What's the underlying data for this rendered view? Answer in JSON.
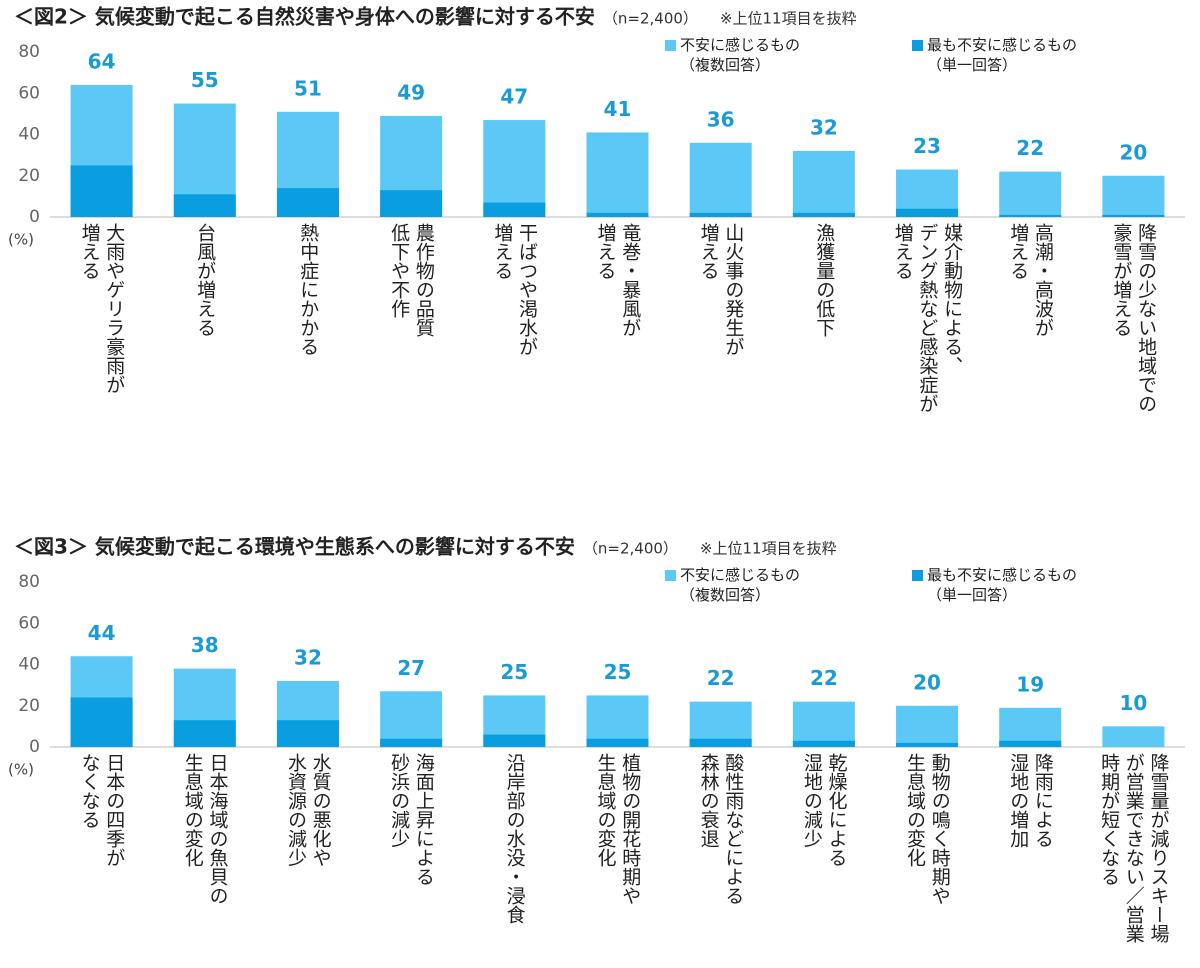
{
  "chart_data": [
    {
      "type": "bar",
      "title": "＜図2＞ 気候変動で起こる自然災害や身体への影響に対する不安",
      "subtitle": "（n=2,400）",
      "note": "※上位11項目を抜粋",
      "unit": "(%)",
      "categories": [
        "大雨やゲリラ豪雨が\n増える",
        "台風が増える",
        "熱中症にかかる",
        "農作物の品質\n低下や不作",
        "干ばつや渇水が\n増える",
        "竜巻・暴風が\n増える",
        "山火事の発生が\n増える",
        "漁獲量の低下",
        "媒介動物による、\nデング熱など感染症が\n増える",
        "高潮・高波が\n増える",
        "降雪の少ない地域での\n豪雪が増える"
      ],
      "series": [
        {
          "name": "不安に感じるもの\n（複数回答）",
          "color": "#5bc8f5",
          "values": [
            64,
            55,
            51,
            49,
            47,
            41,
            36,
            32,
            23,
            22,
            20
          ]
        },
        {
          "name": "最も不安に感じるもの\n（単一回答）",
          "color": "#0a9de0",
          "values": [
            25,
            11,
            14,
            13,
            7,
            2,
            2,
            2,
            4,
            1,
            1
          ]
        }
      ],
      "ylim": [
        0,
        80
      ],
      "yticks": [
        0,
        20,
        40,
        60,
        80
      ],
      "grid": false
    },
    {
      "type": "bar",
      "title": "＜図3＞ 気候変動で起こる環境や生態系への影響に対する不安",
      "subtitle": "（n=2,400）",
      "note": "※上位11項目を抜粋",
      "unit": "(%)",
      "categories": [
        "日本の四季が\nなくなる",
        "日本海域の魚貝の\n生息域の変化",
        "水質の悪化や\n水資源の減少",
        "海面上昇による\n砂浜の減少",
        "沿岸部の水没・浸食",
        "植物の開花時期や\n生息域の変化",
        "酸性雨などによる\n森林の衰退",
        "乾燥化による\n湿地の減少",
        "動物の鳴く時期や\n生息域の変化",
        "降雨による\n湿地の増加",
        "降雪量が減りスキー場\nが営業できない／営業\n時期が短くなる"
      ],
      "series": [
        {
          "name": "不安に感じるもの\n（複数回答）",
          "color": "#5bc8f5",
          "values": [
            44,
            38,
            32,
            27,
            25,
            25,
            22,
            22,
            20,
            19,
            10
          ]
        },
        {
          "name": "最も不安に感じるもの\n（単一回答）",
          "color": "#0a9de0",
          "values": [
            24,
            13,
            13,
            4,
            6,
            4,
            4,
            3,
            2,
            3,
            0
          ]
        }
      ],
      "ylim": [
        0,
        80
      ],
      "yticks": [
        0,
        20,
        40,
        60,
        80
      ],
      "grid": false
    }
  ]
}
